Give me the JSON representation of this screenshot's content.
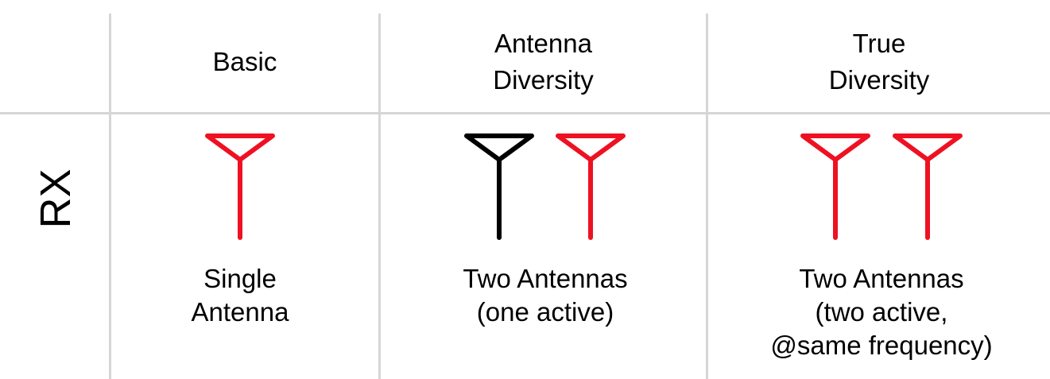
{
  "columns": {
    "basic": {
      "header": [
        "Basic"
      ],
      "caption": [
        "Single",
        "Antenna"
      ]
    },
    "antenna_diversity": {
      "header": [
        "Antenna",
        "Diversity"
      ],
      "caption": [
        "Two Antennas",
        "(one active)"
      ]
    },
    "true_diversity": {
      "header": [
        "True",
        "Diversity"
      ],
      "caption": [
        "Two Antennas",
        "(two active,",
        "@same frequency)"
      ]
    }
  },
  "row_label": "RX",
  "colors": {
    "active_antenna": "#ee1122",
    "inactive_antenna": "#000000",
    "grid": "#d6d6d6"
  },
  "antennas": [
    {
      "column": "basic",
      "state": "active"
    },
    {
      "column": "antenna_diversity",
      "state": "inactive"
    },
    {
      "column": "antenna_diversity",
      "state": "active"
    },
    {
      "column": "true_diversity",
      "state": "active"
    },
    {
      "column": "true_diversity",
      "state": "active"
    }
  ]
}
